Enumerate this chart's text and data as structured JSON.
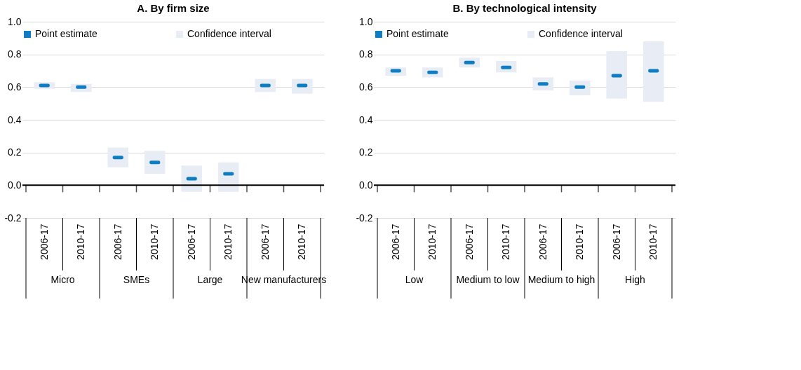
{
  "chart_data": [
    {
      "type": "scatter",
      "title": "A. By firm size",
      "categories": [
        "2006-17",
        "2010-17",
        "2006-17",
        "2010-17",
        "2006-17",
        "2010-17",
        "2006-17",
        "2010-17"
      ],
      "series": [
        {
          "name": "Point estimate",
          "color": "#0f7dc2",
          "values": [
            0.61,
            0.6,
            0.17,
            0.14,
            0.04,
            0.07,
            0.61,
            0.61
          ]
        },
        {
          "name": "Confidence interval",
          "type": "bar",
          "color": "#e8ecf5",
          "base": [
            0.59,
            0.57,
            0.11,
            0.07,
            -0.04,
            -0.04,
            0.57,
            0.56
          ],
          "values": [
            0.04,
            0.05,
            0.12,
            0.14,
            0.16,
            0.18,
            0.08,
            0.09
          ]
        }
      ],
      "annotations": [
        "Micro",
        "SMEs",
        "Large",
        "New manufacturers"
      ],
      "ylim": [
        -0.2,
        1.0
      ],
      "yticks": [
        -0.2,
        {
          "value": 0,
          "label": "0.0"
        },
        0.2,
        0.4,
        0.6,
        0.8,
        {
          "value": 1,
          "label": "1.0"
        }
      ],
      "ref_lines": [
        {
          "axis": "y",
          "value": 0,
          "color": "#000000"
        }
      ],
      "grid": "y",
      "legend": "top"
    },
    {
      "type": "scatter",
      "title": "B. By technological intensity",
      "categories": [
        "2006-17",
        "2010-17",
        "2006-17",
        "2010-17",
        "2006-17",
        "2010-17",
        "2006-17",
        "2010-17"
      ],
      "series": [
        {
          "name": "Point estimate",
          "color": "#0f7dc2",
          "values": [
            0.7,
            0.69,
            0.75,
            0.72,
            0.62,
            0.6,
            0.67,
            0.7
          ]
        },
        {
          "name": "Confidence interval",
          "type": "bar",
          "color": "#e8ecf5",
          "base": [
            0.67,
            0.66,
            0.72,
            0.69,
            0.58,
            0.55,
            0.53,
            0.51
          ],
          "values": [
            0.05,
            0.06,
            0.06,
            0.07,
            0.08,
            0.09,
            0.29,
            0.37
          ]
        }
      ],
      "annotations": [
        "Low",
        "Medium to low",
        "Medium to high",
        "High"
      ],
      "ylim": [
        -0.2,
        1.0
      ],
      "yticks": [
        -0.2,
        {
          "value": 0,
          "label": "0.0"
        },
        0.2,
        0.4,
        0.6,
        0.8,
        {
          "value": 1,
          "label": "1.0"
        }
      ],
      "ref_lines": [
        {
          "axis": "y",
          "value": 0,
          "color": "#000000"
        }
      ],
      "grid": "y",
      "legend": "top"
    }
  ]
}
